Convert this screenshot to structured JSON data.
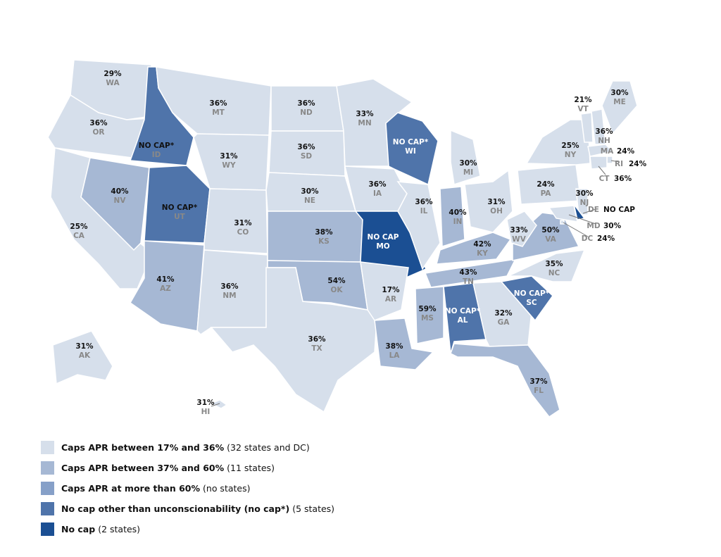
{
  "states": [
    {
      "abbr": "WA",
      "label": "29%",
      "category": 0
    },
    {
      "abbr": "OR",
      "label": "36%",
      "category": 0
    },
    {
      "abbr": "CA",
      "label": "25%",
      "category": 0
    },
    {
      "abbr": "NV",
      "label": "40%",
      "category": 1
    },
    {
      "abbr": "ID",
      "label": "NO CAP*",
      "category": 3
    },
    {
      "abbr": "MT",
      "label": "36%",
      "category": 0
    },
    {
      "abbr": "WY",
      "label": "31%",
      "category": 0
    },
    {
      "abbr": "UT",
      "label": "NO CAP*",
      "category": 3
    },
    {
      "abbr": "CO",
      "label": "31%",
      "category": 0
    },
    {
      "abbr": "AZ",
      "label": "41%",
      "category": 1
    },
    {
      "abbr": "NM",
      "label": "36%",
      "category": 0
    },
    {
      "abbr": "ND",
      "label": "36%",
      "category": 0
    },
    {
      "abbr": "SD",
      "label": "36%",
      "category": 0
    },
    {
      "abbr": "NE",
      "label": "30%",
      "category": 0
    },
    {
      "abbr": "KS",
      "label": "38%",
      "category": 1
    },
    {
      "abbr": "OK",
      "label": "54%",
      "category": 1
    },
    {
      "abbr": "TX",
      "label": "36%",
      "category": 0
    },
    {
      "abbr": "MN",
      "label": "33%",
      "category": 0
    },
    {
      "abbr": "IA",
      "label": "36%",
      "category": 0
    },
    {
      "abbr": "MO",
      "label": "NO CAP",
      "category": 4
    },
    {
      "abbr": "AR",
      "label": "17%",
      "category": 0
    },
    {
      "abbr": "LA",
      "label": "38%",
      "category": 1
    },
    {
      "abbr": "WI",
      "label": "NO CAP*",
      "category": 3
    },
    {
      "abbr": "IL",
      "label": "36%",
      "category": 0
    },
    {
      "abbr": "MI",
      "label": "30%",
      "category": 0
    },
    {
      "abbr": "IN",
      "label": "40%",
      "category": 1
    },
    {
      "abbr": "OH",
      "label": "31%",
      "category": 0
    },
    {
      "abbr": "KY",
      "label": "42%",
      "category": 1
    },
    {
      "abbr": "TN",
      "label": "43%",
      "category": 1
    },
    {
      "abbr": "MS",
      "label": "59%",
      "category": 1
    },
    {
      "abbr": "AL",
      "label": "NO CAP*",
      "category": 3
    },
    {
      "abbr": "GA",
      "label": "32%",
      "category": 0
    },
    {
      "abbr": "FL",
      "label": "37%",
      "category": 1
    },
    {
      "abbr": "SC",
      "label": "NO CAP*",
      "category": 3
    },
    {
      "abbr": "NC",
      "label": "35%",
      "category": 0
    },
    {
      "abbr": "VA",
      "label": "50%",
      "category": 1
    },
    {
      "abbr": "WV",
      "label": "33%",
      "category": 0
    },
    {
      "abbr": "PA",
      "label": "24%",
      "category": 0
    },
    {
      "abbr": "NY",
      "label": "25%",
      "category": 0
    },
    {
      "abbr": "VT",
      "label": "21%",
      "category": 0
    },
    {
      "abbr": "NH",
      "label": "36%",
      "category": 0
    },
    {
      "abbr": "ME",
      "label": "30%",
      "category": 0
    },
    {
      "abbr": "MA",
      "label": "24%",
      "category": 0
    },
    {
      "abbr": "RI",
      "label": "24%",
      "category": 0
    },
    {
      "abbr": "CT",
      "label": "36%",
      "category": 0
    },
    {
      "abbr": "NJ",
      "label": "30%",
      "category": 0
    },
    {
      "abbr": "DE",
      "label": "NO CAP",
      "category": 4
    },
    {
      "abbr": "MD",
      "label": "30%",
      "category": 0
    },
    {
      "abbr": "DC",
      "label": "24%",
      "category": 0
    },
    {
      "abbr": "AK",
      "label": "31%",
      "category": 0
    },
    {
      "abbr": "HI",
      "label": "31%",
      "category": 0
    }
  ],
  "legend": [
    {
      "label": "Caps APR between 17% and 36%",
      "note": "(32 states and DC)",
      "color": "#d6dfeb"
    },
    {
      "label": "Caps APR between 37% and 60%",
      "note": "(11 states)",
      "color": "#a6b8d4"
    },
    {
      "label": "Caps APR at more than 60%",
      "note": "(no states)",
      "color": "#86a0c8"
    },
    {
      "label": "No cap other than unconscionability (no cap*)",
      "note": "(5 states)",
      "color": "#4f74aa"
    },
    {
      "label": "No cap",
      "note": "(2 states)",
      "color": "#1b4f93"
    }
  ]
}
